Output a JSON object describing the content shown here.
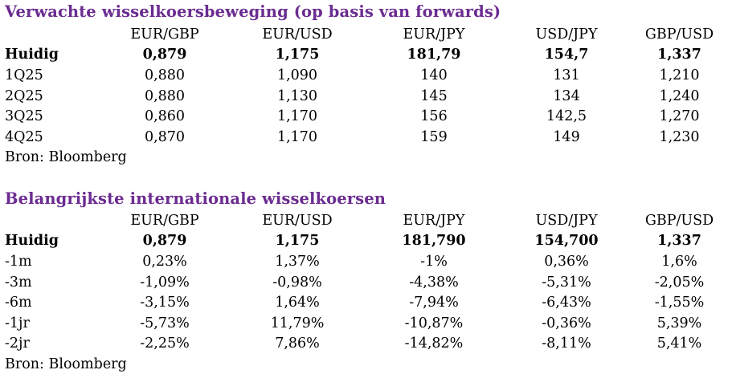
{
  "forward": {
    "title": "Verwachte wisselkoersbeweging (op basis van forwards)",
    "headers": [
      "",
      "EUR/GBP",
      "EUR/USD",
      "EUR/JPY",
      "USD/JPY",
      "GBP/USD"
    ],
    "rows": [
      {
        "label": "Huidig",
        "values": [
          "0,879",
          "1,175",
          "181,79",
          "154,7",
          "1,337"
        ],
        "bold": true
      },
      {
        "label": "1Q25",
        "values": [
          "0,880",
          "1,090",
          "140",
          "131",
          "1,210"
        ]
      },
      {
        "label": "2Q25",
        "values": [
          "0,880",
          "1,130",
          "145",
          "134",
          "1,240"
        ]
      },
      {
        "label": "3Q25",
        "values": [
          "0,860",
          "1,170",
          "156",
          "142,5",
          "1,270"
        ]
      },
      {
        "label": "4Q25",
        "values": [
          "0,870",
          "1,170",
          "159",
          "149",
          "1,230"
        ]
      }
    ],
    "source": "Bron: Bloomberg"
  },
  "international": {
    "title": "Belangrijkste internationale wisselkoersen",
    "headers": [
      "",
      "EUR/GBP",
      "EUR/USD",
      "EUR/JPY",
      "USD/JPY",
      "GBP/USD"
    ],
    "rows": [
      {
        "label": "Huidig",
        "values": [
          "0,879",
          "1,175",
          "181,790",
          "154,700",
          "1,337"
        ],
        "bold": true
      },
      {
        "label": "-1m",
        "values": [
          "0,23%",
          "1,37%",
          "-1%",
          "0,36%",
          "1,6%"
        ]
      },
      {
        "label": "-3m",
        "values": [
          "-1,09%",
          "-0,98%",
          "-4,38%",
          "-5,31%",
          "-2,05%"
        ]
      },
      {
        "label": "-6m",
        "values": [
          "-3,15%",
          "1,64%",
          "-7,94%",
          "-6,43%",
          "-1,55%"
        ]
      },
      {
        "label": "-1jr",
        "values": [
          "-5,73%",
          "11,79%",
          "-10,87%",
          "-0,36%",
          "5,39%"
        ]
      },
      {
        "label": "-2jr",
        "values": [
          "-2,25%",
          "7,86%",
          "-14,82%",
          "-8,11%",
          "5,41%"
        ]
      }
    ],
    "source": "Bron: Bloomberg"
  },
  "colors": {
    "title": "#6b2c91",
    "text": "#000000"
  }
}
